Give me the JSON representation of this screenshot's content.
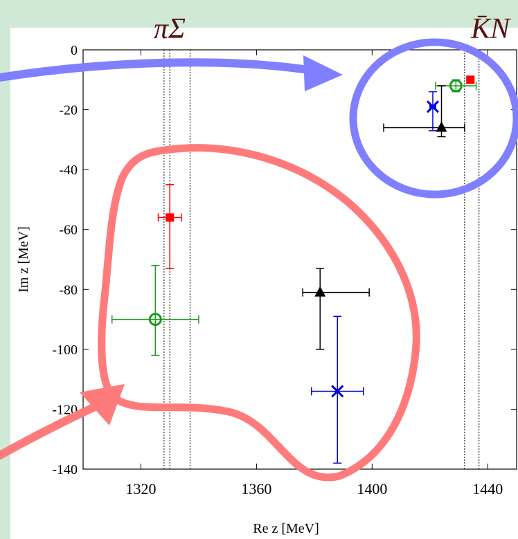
{
  "chart_data": {
    "type": "scatter",
    "xlabel": "Re z [MeV]",
    "ylabel": "Im z [MeV]",
    "xlim": [
      1300,
      1450
    ],
    "ylim": [
      -140,
      0
    ],
    "xticks": [
      1320,
      1360,
      1400,
      1440
    ],
    "yticks": [
      0,
      -20,
      -40,
      -60,
      -80,
      -100,
      -120,
      -140
    ],
    "threshold_labels": [
      "πΣ",
      "K̄N"
    ],
    "threshold_lines": [
      1328,
      1330,
      1337,
      1432,
      1437
    ],
    "series": [
      {
        "color": "#ff0000",
        "marker": "square",
        "points": [
          {
            "x": 1434,
            "y": -10,
            "xerr": [
              1,
              1
            ],
            "yerr": [
              1,
              1
            ]
          },
          {
            "x": 1330,
            "y": -56,
            "xerr": [
              4,
              4
            ],
            "yerr": [
              11,
              17
            ]
          }
        ]
      },
      {
        "color": "#1a9a1a",
        "marker": "circle",
        "points": [
          {
            "x": 1429,
            "y": -12,
            "xerr": [
              7,
              7
            ],
            "yerr": [
              2,
              2
            ]
          },
          {
            "x": 1325,
            "y": -90,
            "xerr": [
              15,
              15
            ],
            "yerr": [
              18,
              12
            ]
          }
        ]
      },
      {
        "color": "#0000dd",
        "marker": "x",
        "points": [
          {
            "x": 1421,
            "y": -19,
            "xerr": [
              1,
              1
            ],
            "yerr": [
              5,
              8
            ]
          },
          {
            "x": 1388,
            "y": -114,
            "xerr": [
              9,
              9
            ],
            "yerr": [
              25,
              24
            ]
          }
        ]
      },
      {
        "color": "#000000",
        "marker": "triangle",
        "points": [
          {
            "x": 1424,
            "y": -26,
            "xerr": [
              20,
              8
            ],
            "yerr": [
              14,
              3
            ]
          },
          {
            "x": 1382,
            "y": -81,
            "xerr": [
              6,
              17
            ],
            "yerr": [
              8,
              19
            ]
          }
        ]
      }
    ],
    "annotations": {
      "blue_loop_color": "#7f7fff",
      "red_loop_color": "#ff7b7b"
    }
  }
}
